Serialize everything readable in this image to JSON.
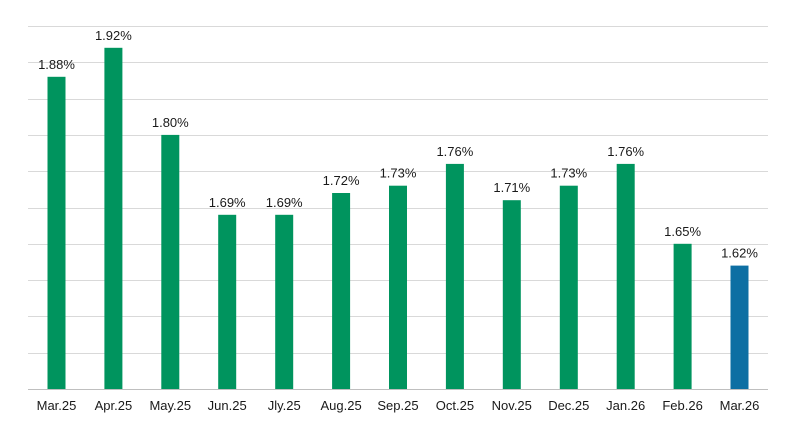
{
  "chart_data": {
    "type": "bar",
    "title": "",
    "xlabel": "",
    "ylabel": "",
    "categories": [
      "Mar.25",
      "Apr.25",
      "May.25",
      "Jun.25",
      "Jly.25",
      "Aug.25",
      "Sep.25",
      "Oct.25",
      "Nov.25",
      "Dec.25",
      "Jan.26",
      "Feb.26",
      "Mar.26"
    ],
    "values": [
      1.88,
      1.92,
      1.8,
      1.69,
      1.69,
      1.72,
      1.73,
      1.76,
      1.71,
      1.73,
      1.76,
      1.65,
      1.62
    ],
    "value_labels": [
      "1.88%",
      "1.92%",
      "1.80%",
      "1.69%",
      "1.69%",
      "1.72%",
      "1.73%",
      "1.76%",
      "1.71%",
      "1.73%",
      "1.76%",
      "1.65%",
      "1.62%"
    ],
    "ylim": [
      1.45,
      1.95
    ],
    "y_gridlines": [
      1.45,
      1.5,
      1.55,
      1.6,
      1.65,
      1.7,
      1.75,
      1.8,
      1.85,
      1.9,
      1.95
    ],
    "grid": true,
    "legend": "none",
    "colors": {
      "default": "#00945e",
      "highlight": "#0d6fa3"
    },
    "highlight_index": 12
  }
}
